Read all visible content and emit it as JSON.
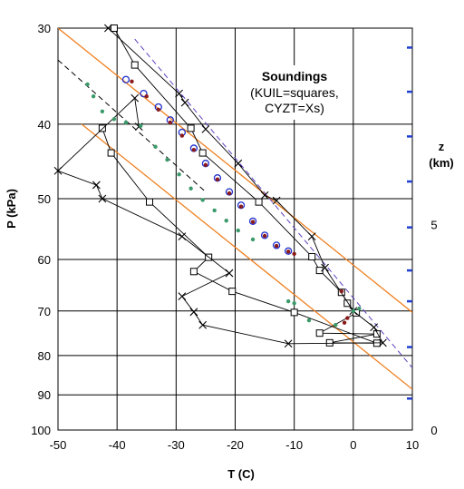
{
  "chart_data": {
    "type": "scatter",
    "title": "Soundings",
    "subtitle_lines": [
      "(KUIL=squares,",
      "CYZT=Xs)"
    ],
    "xlabel": "T (C)",
    "ylabel": "P (kPa)",
    "zlabel_lines": [
      "z",
      "(km)"
    ],
    "xlim": [
      -50,
      10
    ],
    "ylim": [
      100,
      30
    ],
    "y_scale": "log",
    "grid": true,
    "x_ticks": [
      -50,
      -40,
      -30,
      -20,
      -10,
      0,
      10
    ],
    "y_ticks": [
      30,
      40,
      50,
      60,
      70,
      80,
      90,
      100
    ],
    "z_ticks": [
      {
        "label": "0",
        "p": 100
      },
      {
        "label": "5",
        "p": 54
      }
    ],
    "z_marks_p": [
      91,
      78,
      68,
      62,
      54.5,
      47.5,
      41.5,
      36.3,
      31.8
    ],
    "series": [
      {
        "name": "KUIL",
        "marker": "square",
        "color": "#000000",
        "x": [
          -40.5,
          -37,
          -27.5,
          -25.5,
          -16,
          -7,
          -5.7,
          -2,
          -1,
          0.5,
          -5.7,
          4,
          -4,
          4,
          -10,
          -20.5,
          -27,
          -24.5,
          -34.5,
          -41,
          -42.5
        ],
        "y": [
          30,
          33.5,
          40.5,
          43.6,
          50.5,
          59.5,
          62,
          66.2,
          68.4,
          70.4,
          74.8,
          75,
          77,
          77.1,
          70.3,
          66,
          62.2,
          59.6,
          50.5,
          43.6,
          40.5
        ]
      },
      {
        "name": "CYZT",
        "marker": "x",
        "color": "#000000",
        "x": [
          -41.5,
          -29.5,
          -28.5,
          -25,
          -19.5,
          -15,
          -13,
          -7,
          -4.8,
          0,
          3.5,
          5,
          -11,
          -25.5,
          -27,
          -29,
          -21,
          -29,
          -42.5,
          -43.5,
          -50,
          -37,
          -36.3
        ],
        "y": [
          30,
          36.5,
          37.5,
          40.6,
          45,
          49.5,
          50.3,
          56,
          61.5,
          70,
          73.5,
          77,
          77.2,
          73,
          70.2,
          67,
          62.5,
          56,
          50,
          48,
          46,
          37,
          40.3
        ]
      },
      {
        "name": "blue circles",
        "marker": "circle",
        "color": "#1f2ecc",
        "x": [
          -38.5,
          -35.5,
          -33,
          -31,
          -29,
          -27,
          -25,
          -23,
          -21,
          -19,
          -17,
          -15,
          -13,
          -11
        ],
        "y": [
          35,
          36.5,
          38,
          39.5,
          41,
          43,
          45,
          47,
          49,
          51,
          53.5,
          55.8,
          57.5,
          58.5
        ]
      },
      {
        "name": "dark red",
        "marker": "dot",
        "color": "#8b1a1a",
        "x": [
          -37.5,
          -35,
          -33,
          -31,
          -29,
          -27,
          -25,
          -23,
          -21,
          -19,
          -17,
          -15,
          -13,
          -11,
          -10,
          -2,
          -1,
          -1.5
        ],
        "y": [
          35.2,
          36.8,
          38.3,
          39.8,
          41.4,
          43.2,
          45.2,
          47.2,
          49.2,
          51.2,
          53.6,
          55.9,
          57.6,
          58.6,
          59,
          66,
          71.5,
          72.5
        ]
      },
      {
        "name": "green",
        "marker": "dot",
        "color": "#3a9a6a",
        "x": [
          -45,
          -44,
          -42.5,
          -40.5,
          -38.5,
          -36,
          -33.5,
          -31.5,
          -29.5,
          -27.5,
          -25.5,
          -23.5,
          -21.5,
          -19.5,
          -17,
          -11,
          -10,
          -7.5,
          -3,
          0,
          1
        ],
        "y": [
          35.5,
          36.8,
          38.5,
          39.4,
          39.8,
          40.2,
          42.8,
          44.5,
          46.5,
          48.5,
          50.2,
          51.8,
          53.4,
          55,
          56.5,
          68,
          68.4,
          72,
          73,
          70,
          69.5
        ]
      },
      {
        "name": "orange line 1",
        "marker": "line",
        "color": "#f08020",
        "x": [
          -50,
          10
        ],
        "y": [
          30,
          70.3
        ]
      },
      {
        "name": "orange line 2",
        "marker": "line",
        "color": "#f08020",
        "x": [
          -46,
          10
        ],
        "y": [
          40,
          88.5
        ]
      },
      {
        "name": "purple dashed",
        "marker": "dashed",
        "color": "#6040c0",
        "x": [
          -37,
          10
        ],
        "y": [
          31,
          83
        ]
      },
      {
        "name": "black thin dashed",
        "marker": "dashed",
        "color": "#000000",
        "x": [
          -50,
          -25
        ],
        "y": [
          33,
          49
        ]
      }
    ]
  },
  "colors": {
    "grid": "#000000",
    "z_ticks": "#1f3fd0",
    "orange": "#f08020",
    "purple": "#6040c0"
  }
}
